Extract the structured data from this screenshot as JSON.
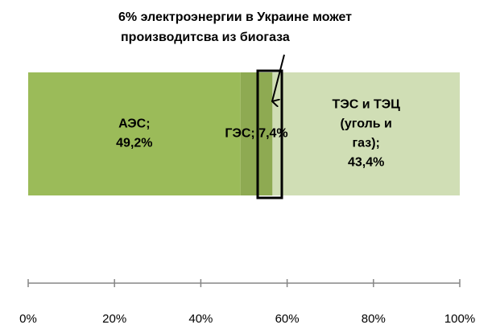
{
  "chart_data": {
    "type": "stacked-bar-horizontal",
    "annotation": [
      "6% электроэнергии в Украине может",
      "производитсва из биогаза"
    ],
    "series": [
      {
        "color": "#9bbb59",
        "values": [
          49.2
        ],
        "value_labels": [
          [
            "АЭС;",
            "49,2%"
          ]
        ]
      },
      {
        "color": "#8eaa52",
        "values": [
          7.4
        ],
        "value_labels": [
          [
            "ГЭС; 7,4%"
          ]
        ]
      },
      {
        "color": "#d0deb5",
        "values": [
          43.4
        ],
        "value_labels": [
          [
            "ТЭС и ТЭЦ",
            "(уголь и",
            "газ);",
            "43,4%"
          ]
        ]
      }
    ],
    "xlim": [
      0,
      100
    ],
    "xticks": [
      {
        "value": 0,
        "label": "0%"
      },
      {
        "value": 20,
        "label": "20%"
      },
      {
        "value": 40,
        "label": "40%"
      },
      {
        "value": 60,
        "label": "60%"
      },
      {
        "value": 80,
        "label": "80%"
      },
      {
        "value": 100,
        "label": "100%"
      }
    ]
  }
}
